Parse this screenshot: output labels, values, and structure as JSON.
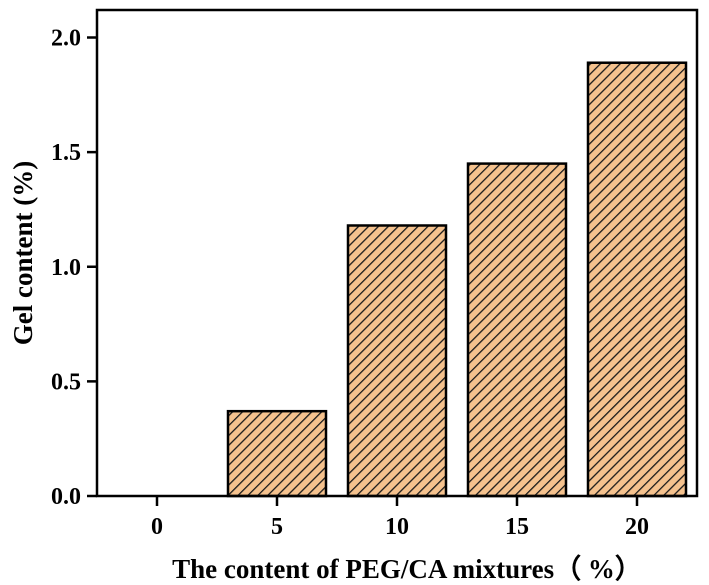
{
  "chart_data": {
    "type": "bar",
    "categories": [
      "0",
      "5",
      "10",
      "15",
      "20"
    ],
    "values": [
      0.0,
      0.37,
      1.18,
      1.45,
      1.89
    ],
    "title": "",
    "xlabel": "The content of PEG/CA mixtures（ %）",
    "ylabel": "Gel content (%)",
    "ylim": [
      0,
      2.12
    ],
    "yticks": [
      "0.0",
      "0.5",
      "1.0",
      "1.5",
      "2.0"
    ],
    "grid": false,
    "legend": "none",
    "bar_fill": "#f5c28e",
    "bar_stroke": "#000000",
    "bar_pattern": "diagonal-hatch"
  }
}
